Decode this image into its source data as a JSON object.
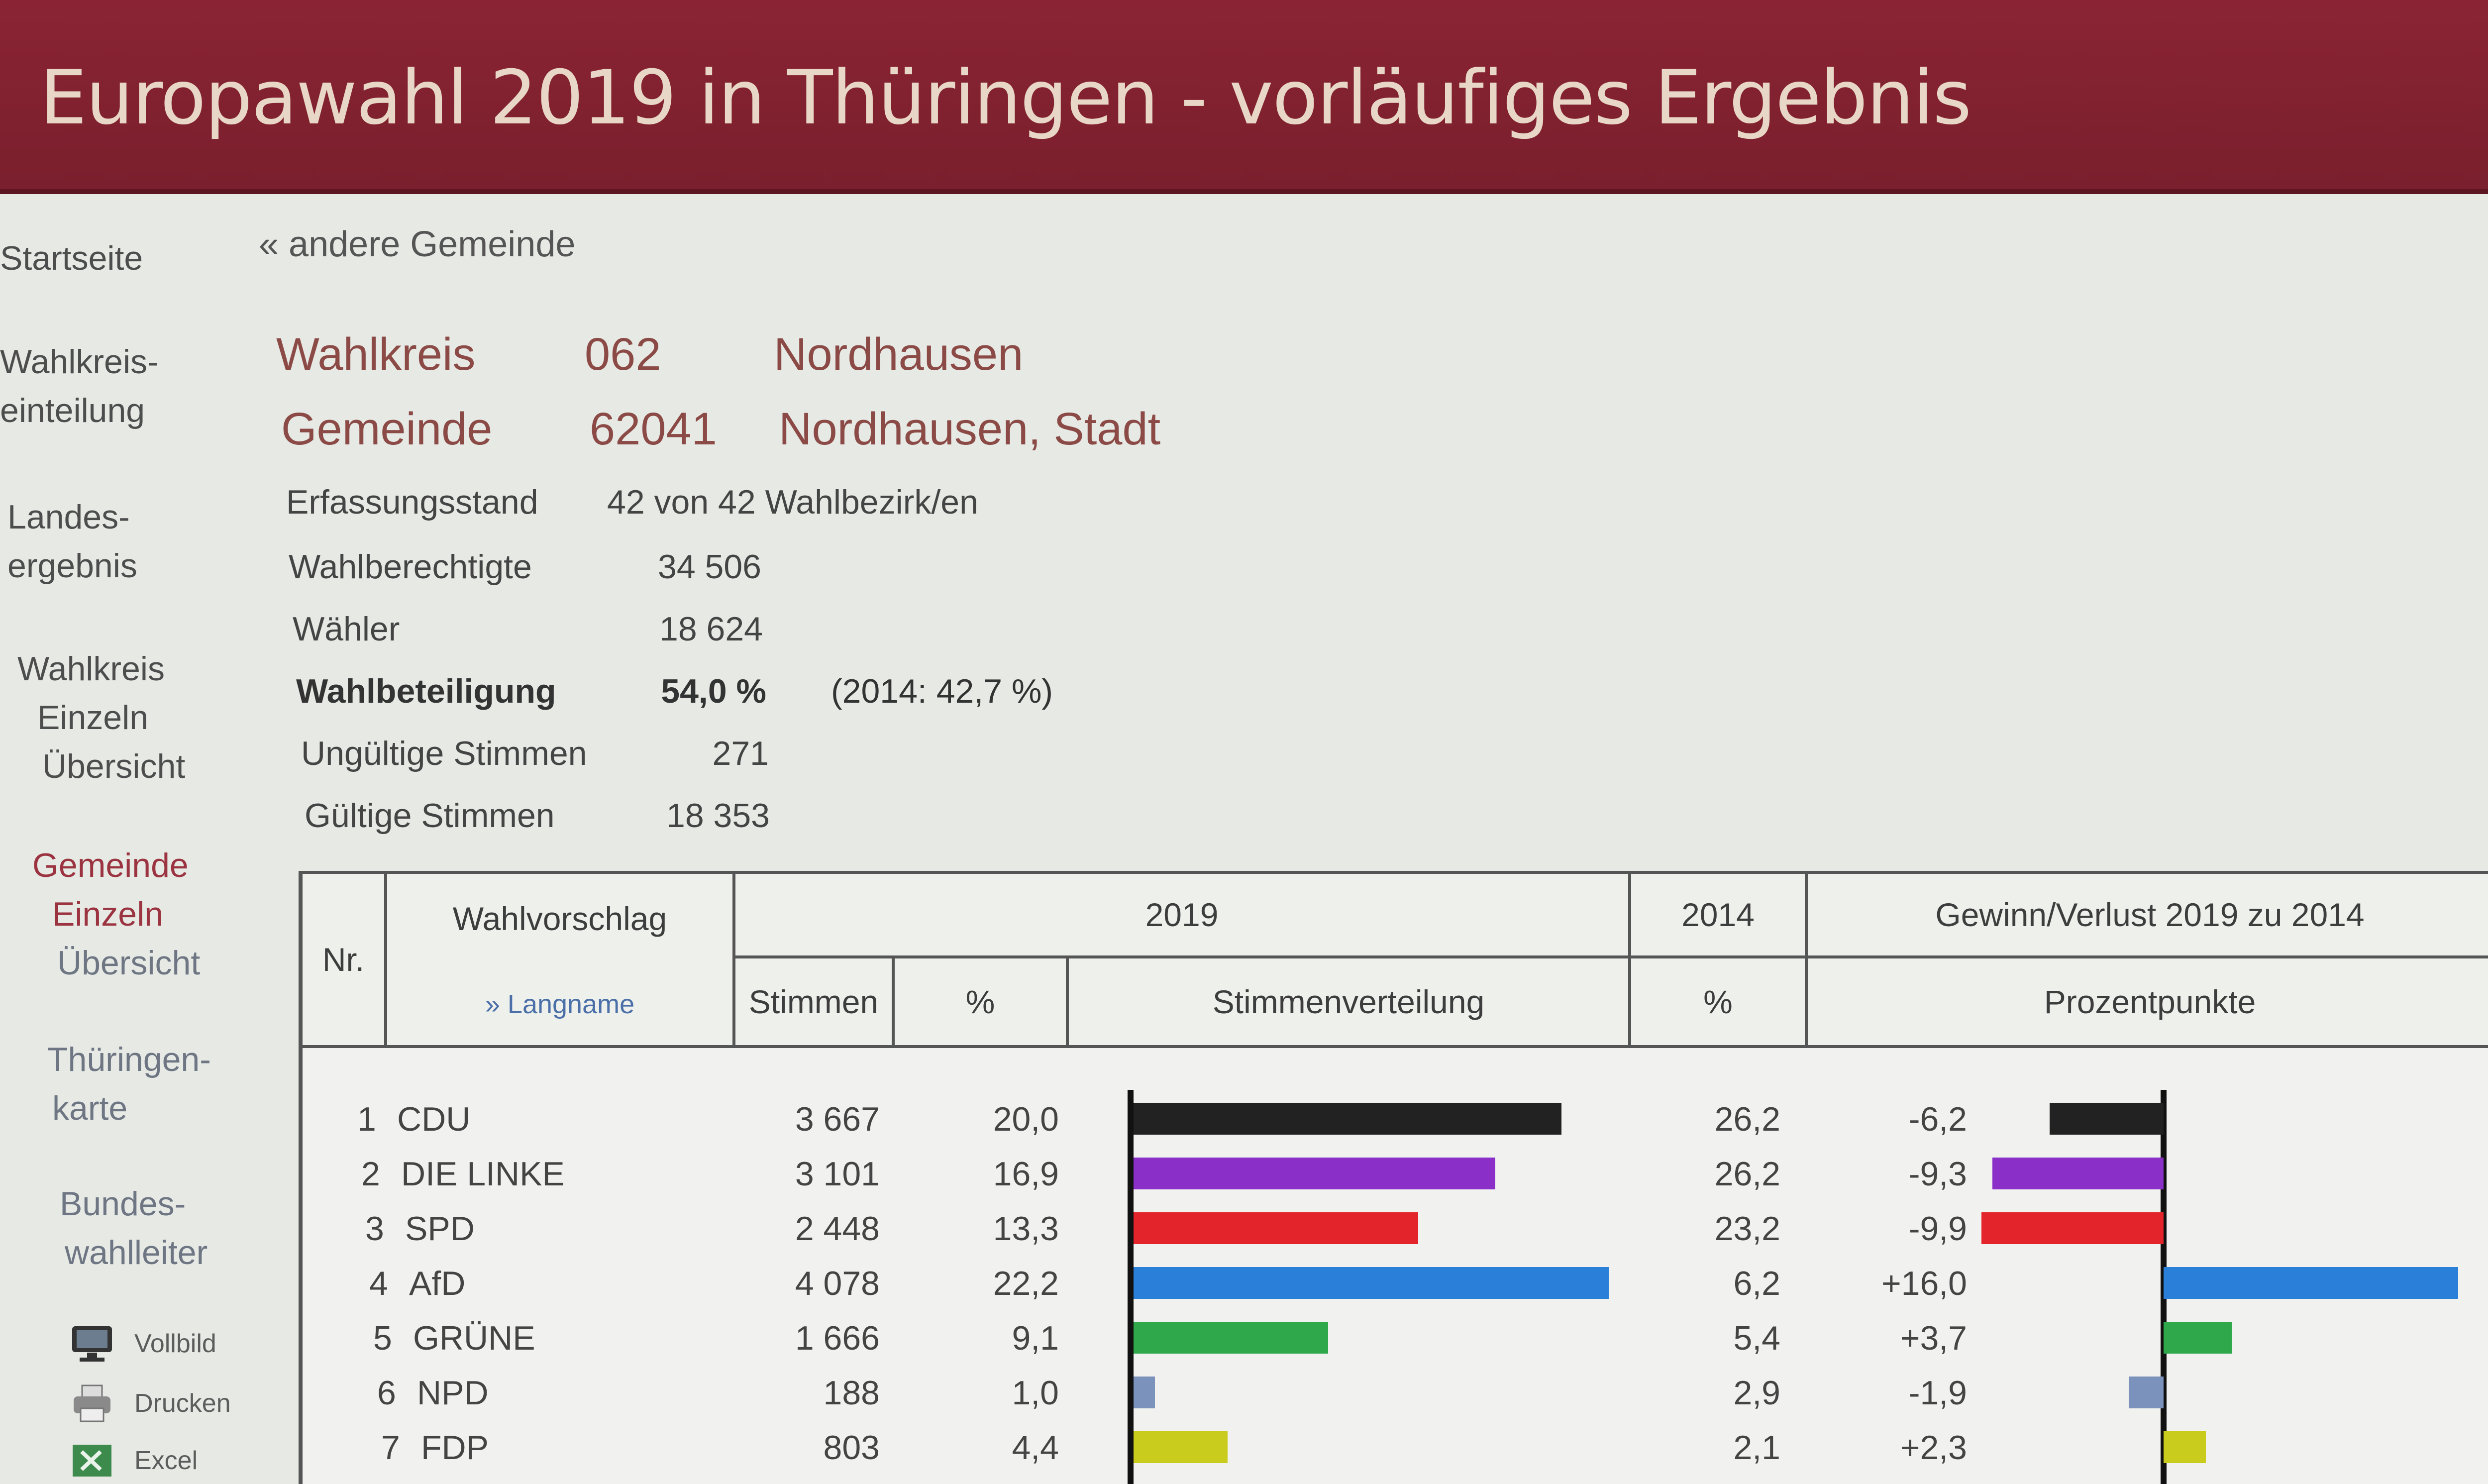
{
  "title": "Europawahl 2019 in Thüringen - vorläufiges Ergebnis",
  "sidebar": {
    "startseite": "Startseite",
    "wahlkreis_einteilung": [
      "Wahlkreis-",
      "einteilung"
    ],
    "landesergebnis": [
      "Landes-",
      "ergebnis"
    ],
    "wahlkreis": [
      "Wahlkreis",
      "Einzeln",
      "Übersicht"
    ],
    "gemeinde": [
      "Gemeinde",
      "Einzeln",
      "Übersicht"
    ],
    "thueringenkarte": [
      "Thüringen-",
      "karte"
    ],
    "bundeswahlleiter": [
      "Bundes-",
      "wahlleiter"
    ],
    "tools": {
      "vollbild": "Vollbild",
      "drucken": "Drucken",
      "excel": "Excel"
    }
  },
  "back_link": "« andere Gemeinde",
  "wahlkreis": {
    "label": "Wahlkreis",
    "nr": "062",
    "name": "Nordhausen"
  },
  "gemeinde": {
    "label": "Gemeinde",
    "nr": "62041",
    "name": "Nordhausen, Stadt"
  },
  "stats": {
    "erfassungsstand": {
      "label": "Erfassungsstand",
      "value": "42 von 42 Wahlbezirk/en"
    },
    "wahlberechtigte": {
      "label": "Wahlberechtigte",
      "value": "34 506"
    },
    "waehler": {
      "label": "Wähler",
      "value": "18 624"
    },
    "wahlbeteiligung": {
      "label": "Wahlbeteiligung",
      "value": "54,0 %",
      "prev": "(2014: 42,7 %)"
    },
    "ungueltig": {
      "label": "Ungültige Stimmen",
      "value": "271"
    },
    "gueltig": {
      "label": "Gültige Stimmen",
      "value": "18 353"
    }
  },
  "table": {
    "headers": {
      "nr": "Nr.",
      "wahlvorschlag": "Wahlvorschlag",
      "langname": "» Langname",
      "y2019": "2019",
      "y2014": "2014",
      "gewinn": "Gewinn/Verlust 2019 zu 2014",
      "stimmen": "Stimmen",
      "pct": "%",
      "verteilung": "Stimmenverteilung",
      "pct2014": "%",
      "prozentpunkte": "Prozentpunkte"
    },
    "rows": [
      {
        "nr": "1",
        "party": "CDU",
        "stimmen": "3 667",
        "pct": "20,0",
        "pct_val": 20.0,
        "pct2014": "26,2",
        "diff": "-6,2",
        "diff_val": -6.2,
        "color": "#222222"
      },
      {
        "nr": "2",
        "party": "DIE LINKE",
        "stimmen": "3 101",
        "pct": "16,9",
        "pct_val": 16.9,
        "pct2014": "26,2",
        "diff": "-9,3",
        "diff_val": -9.3,
        "color": "#8b2fc9"
      },
      {
        "nr": "3",
        "party": "SPD",
        "stimmen": "2 448",
        "pct": "13,3",
        "pct_val": 13.3,
        "pct2014": "23,2",
        "diff": "-9,9",
        "diff_val": -9.9,
        "color": "#e3242b"
      },
      {
        "nr": "4",
        "party": "AfD",
        "stimmen": "4 078",
        "pct": "22,2",
        "pct_val": 22.2,
        "pct2014": "6,2",
        "diff": "+16,0",
        "diff_val": 16.0,
        "color": "#2a7fd8"
      },
      {
        "nr": "5",
        "party": "GRÜNE",
        "stimmen": "1 666",
        "pct": "9,1",
        "pct_val": 9.1,
        "pct2014": "5,4",
        "diff": "+3,7",
        "diff_val": 3.7,
        "color": "#2ea84a"
      },
      {
        "nr": "6",
        "party": "NPD",
        "stimmen": "188",
        "pct": "1,0",
        "pct_val": 1.0,
        "pct2014": "2,9",
        "diff": "-1,9",
        "diff_val": -1.9,
        "color": "#7b93bc"
      },
      {
        "nr": "7",
        "party": "FDP",
        "stimmen": "803",
        "pct": "4,4",
        "pct_val": 4.4,
        "pct2014": "2,1",
        "diff": "+2,3",
        "diff_val": 2.3,
        "color": "#c9cc1c"
      }
    ]
  }
}
